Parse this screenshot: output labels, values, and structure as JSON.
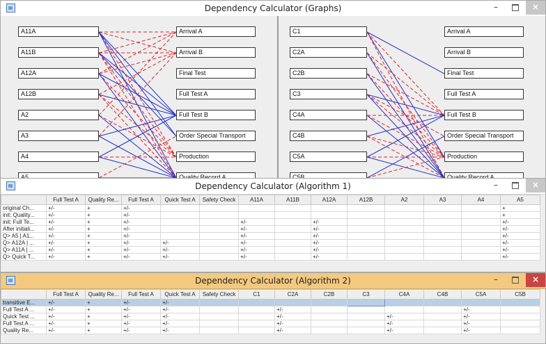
{
  "window1": {
    "title": "Dependency Calculator (Graphs)",
    "left_graph": {
      "left_nodes": [
        "A11A",
        "A11B",
        "A12A",
        "A12B",
        "A2",
        "A3",
        "A4",
        "A5"
      ],
      "right_nodes": [
        "Arrival A",
        "Arrival B",
        "Final Test",
        "Full Test A",
        "Full Test B",
        "Order Special Transport",
        "Production",
        "Quality Record A"
      ]
    },
    "right_graph": {
      "left_nodes": [
        "C1",
        "C2A",
        "C2B",
        "C3",
        "C4A",
        "C4B",
        "C5A",
        "C5B"
      ],
      "right_nodes": [
        "Arrival A",
        "Arrival B",
        "Final Test",
        "Full Test A",
        "Full Test B",
        "Order Special Transport",
        "Production",
        "Quality Record A"
      ]
    }
  },
  "window2": {
    "title": "Dependency Calculator (Algorithm 1)",
    "columns": [
      "",
      "Full Test A",
      "Quality Re...",
      "Full Test A",
      "Quick Test A",
      "Safety Check",
      "A11A",
      "A11B",
      "A12A",
      "A12B",
      "A2",
      "A3",
      "A4",
      "A5"
    ],
    "rows": [
      [
        "original Ch...",
        "+/-",
        "+",
        "+/-",
        "",
        "",
        "",
        "",
        "",
        "",
        "",
        "",
        "",
        "+"
      ],
      [
        "init: Quality...",
        "+/-",
        "+",
        "+/-",
        "",
        "",
        "",
        "",
        "",
        "",
        "",
        "",
        "",
        "+"
      ],
      [
        "init: Full Te...",
        "+/-",
        "+",
        "+/-",
        "",
        "",
        "+/-",
        "",
        "+/-",
        "",
        "",
        "",
        "",
        "+/-"
      ],
      [
        "After initiali...",
        "+/-",
        "+",
        "+/-",
        "",
        "",
        "+/-",
        "",
        "+/-",
        "",
        "",
        "",
        "",
        "+/-"
      ],
      [
        "Q> A5 | A1...",
        "+/-",
        "+",
        "+/-",
        "",
        "",
        "+/-",
        "",
        "+/-",
        "",
        "",
        "",
        "",
        "+/-"
      ],
      [
        "Q> A12A | ...",
        "+/-",
        "+",
        "+/-",
        "+/-",
        "",
        "+/-",
        "",
        "+/-",
        "",
        "",
        "",
        "",
        "+/-"
      ],
      [
        "Q> A11A | ...",
        "+/-",
        "+",
        "+/-",
        "+/-",
        "",
        "+/-",
        "",
        "+/-",
        "",
        "",
        "",
        "",
        "+/-"
      ],
      [
        "Q> Quick T...",
        "+/-",
        "+",
        "+/-",
        "+/-",
        "",
        "+/-",
        "",
        "+/-",
        "",
        "",
        "",
        "",
        "+/-"
      ]
    ]
  },
  "window3": {
    "title": "Dependency Calculator (Algorithm 2)",
    "columns": [
      "",
      "Full Test A",
      "Quality Re...",
      "Full Test A",
      "Quick Test A",
      "Safety Check",
      "C1",
      "C2A",
      "C2B",
      "C3",
      "C4A",
      "C4B",
      "C5A",
      "C5B"
    ],
    "rows": [
      [
        "transitive E...",
        "+/-",
        "+",
        "+/-",
        "+/-",
        "",
        "",
        "",
        "",
        "",
        "",
        "",
        "",
        ""
      ],
      [
        "Full Test A ...",
        "+/-",
        "+",
        "+/-",
        "+/-",
        "",
        "",
        "+/-",
        "",
        "",
        "",
        "",
        "+/-",
        ""
      ],
      [
        "Quick Test ...",
        "+/-",
        "+",
        "+/-",
        "+/-",
        "",
        "",
        "+/-",
        "",
        "",
        "+/-",
        "",
        "+/-",
        ""
      ],
      [
        "Full Test A ...",
        "+/-",
        "+",
        "+/-",
        "+/-",
        "",
        "",
        "+/-",
        "",
        "",
        "+/-",
        "",
        "+/-",
        ""
      ],
      [
        "Quality Re...",
        "+/-",
        "+",
        "+/-",
        "+/-",
        "",
        "",
        "+/-",
        "",
        "",
        "+/-",
        "",
        "+/-",
        ""
      ]
    ]
  },
  "colors": {
    "solid_edge": "#2233cc",
    "dashed_edge": "#e0222a",
    "active_title": "#f3c980",
    "selection": "#b8cfe5"
  },
  "icons": [
    "app-icon",
    "minimize-icon",
    "maximize-icon",
    "close-icon"
  ]
}
